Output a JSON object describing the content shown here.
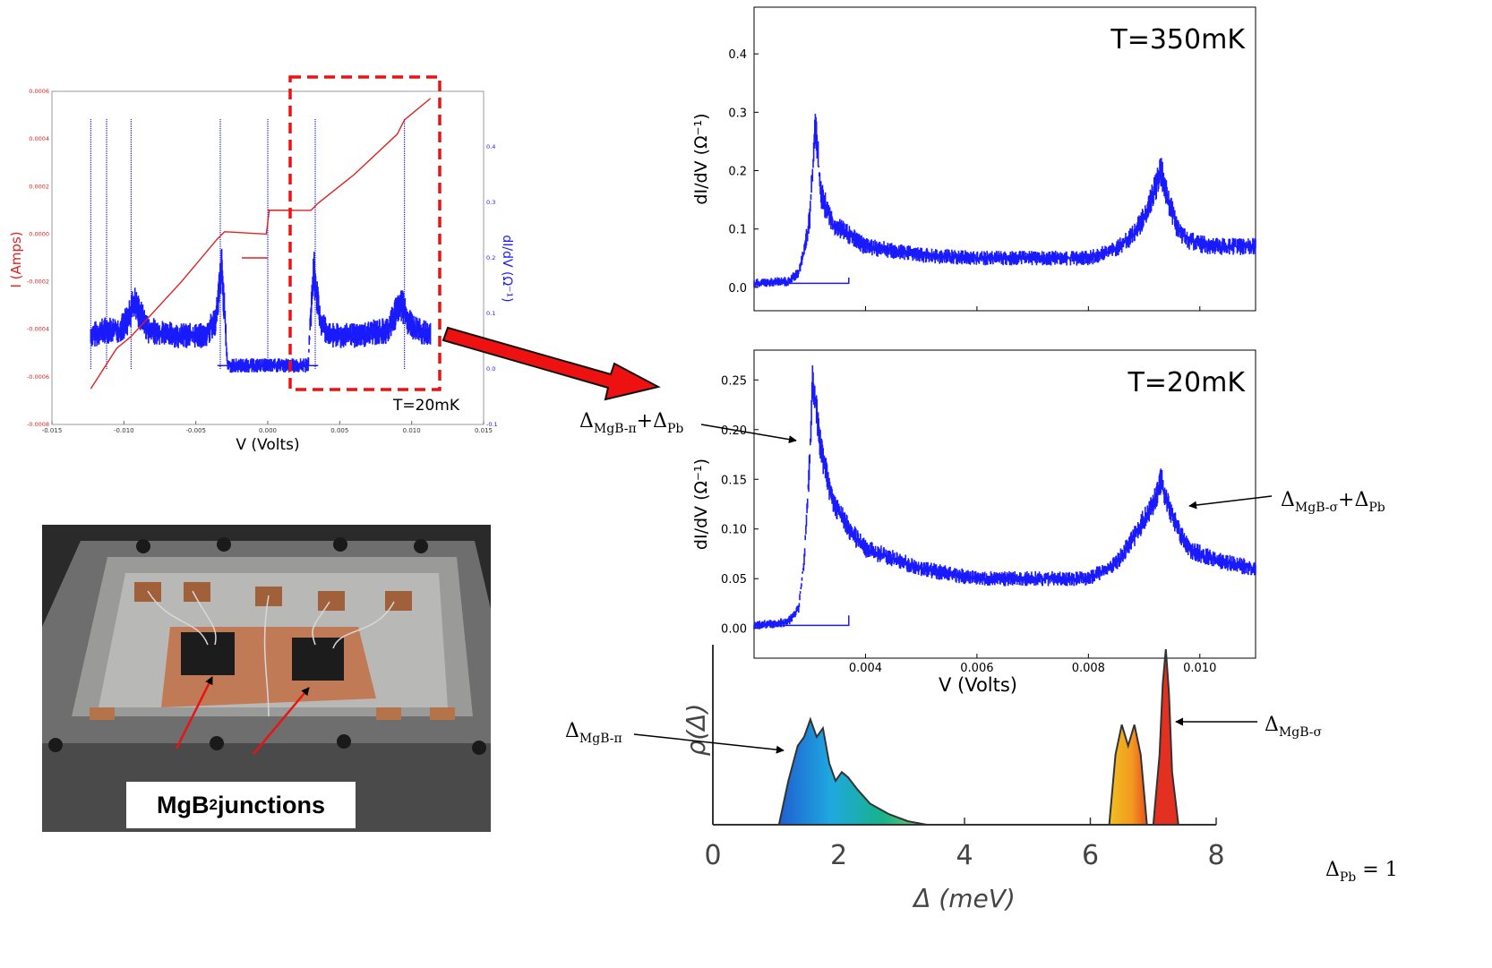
{
  "chart_data": [
    {
      "id": "iv_overview",
      "type": "scatter",
      "xlabel": "V (Volts)",
      "ylabel_left": "I (Amps)",
      "ylabel_right": "dI/dV (Ω⁻¹)",
      "xlim": [
        -0.015,
        0.015
      ],
      "ylim_left": [
        -0.0008,
        0.0006
      ],
      "ylim_right": [
        -0.1,
        0.5
      ],
      "xticks": [
        "-0.015",
        "-0.010",
        "-0.005",
        "0.000",
        "0.005",
        "0.010",
        "0.015"
      ],
      "yticks_left": [
        "0.0006",
        "0.0004",
        "0.0002",
        "0.0000",
        "-0.0002",
        "-0.0004",
        "-0.0006",
        "-0.0008"
      ],
      "yticks_right": [
        "0.4",
        "0.3",
        "0.2",
        "0.1",
        "0.0",
        "-0.1"
      ],
      "annotation": "T=20mK",
      "colors": {
        "current": "#dd2222",
        "conductance": "#1a1aff",
        "box": "#ee1111"
      },
      "series": [
        {
          "name": "I",
          "x": [
            -0.0123,
            -0.0105,
            -0.0095,
            -0.006,
            -0.0035,
            -0.003,
            -0.0001,
            0.0001,
            0.003,
            0.0035,
            0.006,
            0.009,
            0.0095,
            0.0113
          ],
          "y": [
            -0.00065,
            -0.00048,
            -0.00043,
            -0.0002,
            -2e-05,
            1e-05,
            0.0,
            0.0001,
            0.0001,
            0.00013,
            0.00025,
            0.00042,
            0.00048,
            0.00057
          ]
        },
        {
          "name": "dI/dV",
          "x": [
            -0.0123,
            -0.0113,
            -0.0103,
            -0.0097,
            -0.0093,
            -0.0083,
            -0.0063,
            -0.0043,
            -0.0036,
            -0.0032,
            -0.003,
            -0.0028,
            0.0,
            0.0028,
            0.003,
            0.0032,
            0.0036,
            0.0043,
            0.0063,
            0.0083,
            0.0093,
            0.0097,
            0.0103,
            0.0113
          ],
          "y": [
            0.06,
            0.07,
            0.07,
            0.09,
            0.12,
            0.07,
            0.06,
            0.06,
            0.09,
            0.18,
            0.1,
            0.006,
            0.006,
            0.006,
            0.1,
            0.18,
            0.09,
            0.06,
            0.06,
            0.07,
            0.12,
            0.09,
            0.07,
            0.06
          ]
        }
      ]
    },
    {
      "id": "didv_350mK",
      "type": "scatter",
      "ylabel": "dI/dV (Ω⁻¹)",
      "xlim": [
        0.002,
        0.011
      ],
      "ylim": [
        -0.04,
        0.48
      ],
      "yticks": [
        "0.0",
        "0.1",
        "0.2",
        "0.3",
        "0.4"
      ],
      "annotation": "T=350mK",
      "series": [
        {
          "name": "dI/dV",
          "x": [
            0.002,
            0.0026,
            0.0028,
            0.0029,
            0.003,
            0.00305,
            0.0031,
            0.0032,
            0.0034,
            0.0037,
            0.004,
            0.005,
            0.006,
            0.007,
            0.008,
            0.0085,
            0.0088,
            0.009,
            0.0092,
            0.0093,
            0.0094,
            0.0096,
            0.0098,
            0.0102,
            0.0106,
            0.011
          ],
          "y": [
            0.007,
            0.01,
            0.025,
            0.06,
            0.12,
            0.2,
            0.28,
            0.16,
            0.11,
            0.09,
            0.07,
            0.055,
            0.05,
            0.05,
            0.05,
            0.065,
            0.09,
            0.12,
            0.17,
            0.2,
            0.16,
            0.1,
            0.08,
            0.07,
            0.07,
            0.07
          ]
        }
      ]
    },
    {
      "id": "didv_20mK",
      "type": "scatter",
      "xlabel": "V (Volts)",
      "ylabel": "dI/dV (Ω⁻¹)",
      "xlim": [
        0.002,
        0.011
      ],
      "ylim": [
        -0.03,
        0.28
      ],
      "xticks": [
        "0.004",
        "0.006",
        "0.008",
        "0.010"
      ],
      "yticks": [
        "0.00",
        "0.05",
        "0.10",
        "0.15",
        "0.20",
        "0.25"
      ],
      "annotation": "T=20mK",
      "series": [
        {
          "name": "dI/dV",
          "x": [
            0.002,
            0.0026,
            0.0028,
            0.0029,
            0.003,
            0.00305,
            0.0031,
            0.0032,
            0.0034,
            0.0037,
            0.004,
            0.005,
            0.006,
            0.007,
            0.008,
            0.0085,
            0.0088,
            0.009,
            0.0092,
            0.0093,
            0.0094,
            0.0096,
            0.0098,
            0.0102,
            0.0106,
            0.011
          ],
          "y": [
            0.003,
            0.006,
            0.02,
            0.07,
            0.17,
            0.25,
            0.23,
            0.18,
            0.13,
            0.1,
            0.08,
            0.06,
            0.05,
            0.05,
            0.05,
            0.065,
            0.09,
            0.11,
            0.13,
            0.15,
            0.13,
            0.1,
            0.08,
            0.07,
            0.065,
            0.06
          ]
        }
      ]
    },
    {
      "id": "gap_distribution",
      "type": "area",
      "xlabel": "Δ (meV)",
      "ylabel": "ρ(Δ)",
      "xlim": [
        0,
        8
      ],
      "xticks": [
        "0",
        "2",
        "4",
        "6",
        "8"
      ],
      "series": [
        {
          "name": "ρ(Δ)",
          "x": [
            1.05,
            1.2,
            1.35,
            1.45,
            1.55,
            1.65,
            1.75,
            1.85,
            1.95,
            2.05,
            2.15,
            2.3,
            2.5,
            2.8,
            3.1,
            3.4,
            6.3,
            6.4,
            6.5,
            6.6,
            6.7,
            6.8,
            6.9,
            7.0,
            7.1,
            7.15,
            7.2,
            7.25,
            7.3,
            7.4
          ],
          "y": [
            0,
            0.25,
            0.45,
            0.5,
            0.6,
            0.5,
            0.55,
            0.35,
            0.25,
            0.3,
            0.27,
            0.2,
            0.12,
            0.06,
            0.02,
            0,
            0,
            0.4,
            0.57,
            0.45,
            0.57,
            0.4,
            0,
            0,
            0.4,
            0.8,
            1.0,
            0.75,
            0.3,
            0
          ]
        }
      ]
    }
  ],
  "labels": {
    "pi_plus_pb": "Δ_MgB-π+Δ_Pb",
    "sigma_plus_pb": "Δ_MgB-σ+Δ_Pb",
    "pi": "Δ_MgB-π",
    "sigma": "Δ_MgB-σ",
    "pb": "Δ_Pb = 1"
  },
  "photo": {
    "caption": "MgB",
    "caption_sub": "2",
    "caption_rest": " junctions"
  }
}
